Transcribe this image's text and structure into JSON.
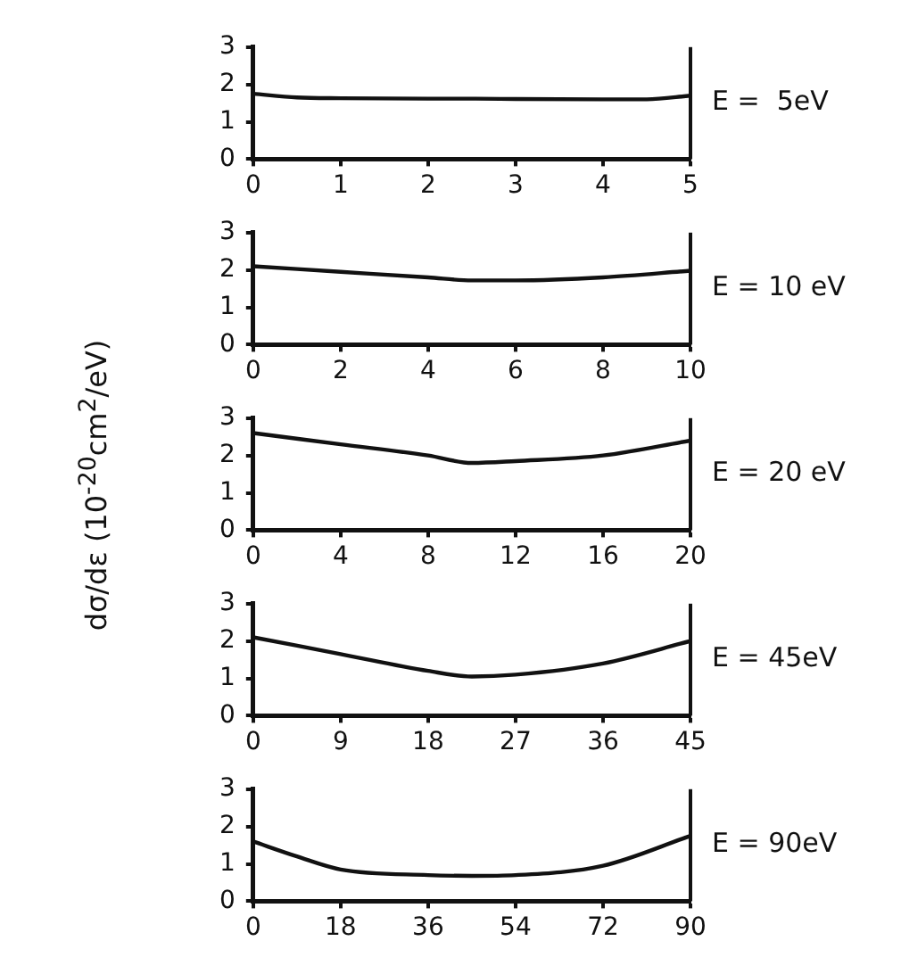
{
  "chart_data": [
    {
      "type": "line",
      "x": [
        0,
        0.5,
        1,
        2,
        2.5,
        3,
        4,
        4.5,
        5
      ],
      "values": [
        1.75,
        1.65,
        1.63,
        1.62,
        1.62,
        1.61,
        1.6,
        1.6,
        1.7
      ],
      "color": "#111111",
      "xlim": [
        0,
        5
      ],
      "xticks": [
        0,
        1,
        2,
        3,
        4,
        5
      ],
      "ylim": [
        0,
        3
      ],
      "yticks": [
        0,
        1,
        2,
        3
      ],
      "grid": false,
      "legend": false,
      "marker": "none",
      "annotations": [
        "E =  5eV"
      ]
    },
    {
      "type": "line",
      "x": [
        0,
        2,
        4,
        5,
        6,
        8,
        10
      ],
      "values": [
        2.1,
        1.95,
        1.8,
        1.72,
        1.72,
        1.8,
        1.98
      ],
      "color": "#111111",
      "xlim": [
        0,
        10
      ],
      "xticks": [
        0,
        2,
        4,
        6,
        8,
        10
      ],
      "ylim": [
        0,
        3
      ],
      "yticks": [
        0,
        1,
        2,
        3
      ],
      "grid": false,
      "legend": false,
      "marker": "none",
      "annotations": [
        "E = 10 eV"
      ]
    },
    {
      "type": "line",
      "x": [
        0,
        4,
        8,
        10,
        12,
        16,
        20
      ],
      "values": [
        2.6,
        2.3,
        2.0,
        1.8,
        1.85,
        2.0,
        2.4
      ],
      "color": "#111111",
      "xlim": [
        0,
        20
      ],
      "xticks": [
        0,
        4,
        8,
        12,
        16,
        20
      ],
      "ylim": [
        0,
        3
      ],
      "yticks": [
        0,
        1,
        2,
        3
      ],
      "grid": false,
      "legend": false,
      "marker": "none",
      "ylabel": "dσ/dε  (10$^{-20}$cm$^{2}$/eV)",
      "annotations": [
        "E = 20 eV"
      ]
    },
    {
      "type": "line",
      "x": [
        0,
        9,
        18,
        22.5,
        27,
        36,
        45
      ],
      "values": [
        2.1,
        1.65,
        1.2,
        1.05,
        1.1,
        1.4,
        2.0
      ],
      "color": "#111111",
      "xlim": [
        0,
        45
      ],
      "xticks": [
        0,
        9,
        18,
        27,
        36,
        45
      ],
      "ylim": [
        0,
        3
      ],
      "yticks": [
        0,
        1,
        2,
        3
      ],
      "grid": false,
      "legend": false,
      "marker": "none",
      "annotations": [
        "E = 45eV"
      ]
    },
    {
      "type": "line",
      "x": [
        0,
        9,
        18,
        36,
        45,
        54,
        72,
        90
      ],
      "values": [
        1.6,
        1.2,
        0.85,
        0.7,
        0.68,
        0.7,
        0.95,
        1.75
      ],
      "color": "#111111",
      "xlim": [
        0,
        90
      ],
      "xticks": [
        0,
        18,
        36,
        54,
        72,
        90
      ],
      "ylim": [
        0,
        3
      ],
      "yticks": [
        0,
        1,
        2,
        3
      ],
      "grid": false,
      "legend": false,
      "marker": "none",
      "annotations": [
        "E = 90eV"
      ]
    }
  ]
}
